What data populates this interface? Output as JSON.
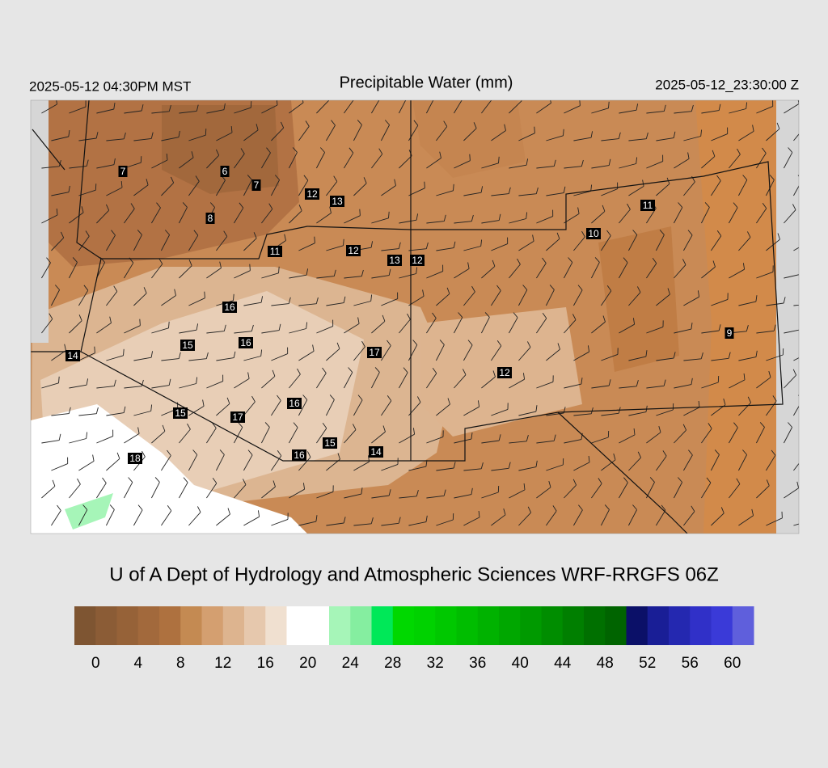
{
  "header": {
    "local_time": "2025-05-12 04:30PM MST",
    "title": "Precipitable Water (mm)",
    "utc_time": "2025-05-12_23:30:00 Z"
  },
  "stations": [
    7,
    6,
    7,
    12,
    13,
    8,
    11,
    12,
    13,
    12,
    11,
    10,
    16,
    15,
    16,
    17,
    14,
    9,
    12,
    15,
    17,
    16,
    15,
    16,
    14,
    18
  ],
  "credit": "U of A Dept of Hydrology and Atmospheric Sciences WRF-RRGFS 06Z",
  "colorbar": {
    "lim": [
      -2,
      62
    ],
    "colors": [
      "#7e5532",
      "#8b5c36",
      "#966238",
      "#a2693c",
      "#ae713f",
      "#c48a52",
      "#d49f70",
      "#ddb48f",
      "#e6c8ad",
      "#f0e0d0",
      "#ffffff",
      "#ffffff",
      "#a6f5b8",
      "#85eea0",
      "#00e858",
      "#00d800",
      "#00d200",
      "#00c800",
      "#00bd00",
      "#00b200",
      "#00a700",
      "#009a00",
      "#008d00",
      "#007f00",
      "#007000",
      "#006400",
      "#0b1068",
      "#191e96",
      "#2428b0",
      "#3030c8",
      "#3a3ad8",
      "#5f5fdc"
    ],
    "ticks": [
      0,
      4,
      8,
      12,
      16,
      20,
      24,
      28,
      32,
      36,
      40,
      44,
      48,
      52,
      56,
      60
    ]
  }
}
